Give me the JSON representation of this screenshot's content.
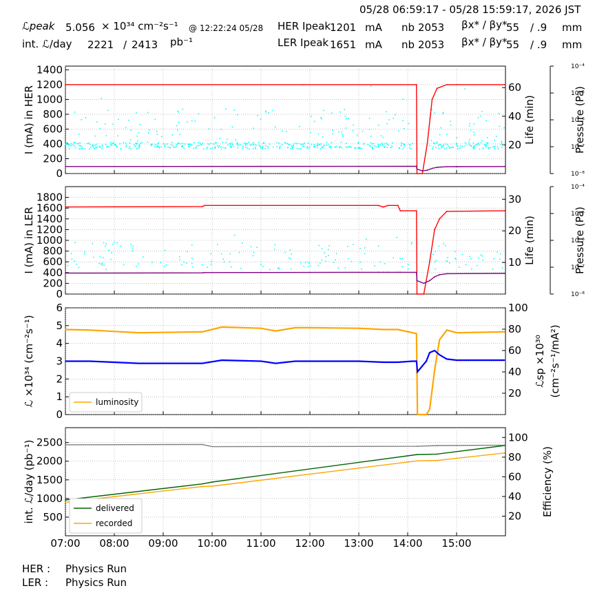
{
  "header": {
    "time_range": "05/28 06:59:17 - 05/28 15:59:17, 2026 JST",
    "lpeak_label": "ℒpeak",
    "lpeak_value": "5.056",
    "lpeak_unit": "× 10³⁴ cm⁻²s⁻¹",
    "lpeak_time": "@ 12:22:24 05/28",
    "intl_label": "int. ℒ/day",
    "intl_value1": "2221",
    "intl_sep": "/",
    "intl_value2": "2413",
    "intl_unit": "pb⁻¹",
    "her": {
      "label": "HER Ipeak",
      "current": "1201",
      "unit": "mA",
      "nb_label": "nb",
      "nb": "2053",
      "beta_label": "βx* / βy*",
      "beta_x": "55",
      "beta_y": "/ .9",
      "beta_unit": "mm"
    },
    "ler": {
      "label": "LER Ipeak",
      "current": "1651",
      "unit": "mA",
      "nb_label": "nb",
      "nb": "2053",
      "beta_label": "βx* / βy*",
      "beta_x": "55",
      "beta_y": "/ .9",
      "beta_unit": "mm"
    }
  },
  "footer": {
    "her_label": "HER :",
    "her_status": "Physics Run",
    "ler_label": "LER :",
    "ler_status": "Physics Run"
  },
  "colors": {
    "red": "#ff0000",
    "cyan": "#00ffff",
    "purple": "#800080",
    "orange": "#ffa500",
    "blue": "#0000ff",
    "green": "#006400",
    "gray": "#808080"
  },
  "chart_data": [
    {
      "type": "line",
      "title": "",
      "ylabel": "I (mA) in HER",
      "ylabel_right": "Life (min)",
      "ylabel_right2": "Pressure (Pa)",
      "ylim": [
        0,
        1450
      ],
      "yticks": [
        0,
        200,
        400,
        600,
        800,
        1000,
        1200,
        1400
      ],
      "y2lim": [
        0,
        75
      ],
      "y2ticks": [
        20,
        40,
        60
      ],
      "y3ticks": [
        "10⁻⁸",
        "10⁻⁷",
        "10⁻⁶",
        "10⁻⁵",
        "10⁻⁴"
      ],
      "x": [
        7.0,
        14.18,
        14.19,
        14.3,
        14.4,
        14.5,
        14.6,
        14.8,
        15.0,
        15.98
      ],
      "series": [
        {
          "name": "HER current",
          "color": "#ff0000",
          "axis": "left",
          "values": [
            1200,
            1200,
            0,
            0,
            400,
            1000,
            1150,
            1200,
            1200,
            1200
          ]
        },
        {
          "name": "HER lifetime",
          "color": "#800080",
          "axis": "left",
          "values": [
            95,
            98,
            60,
            35,
            45,
            70,
            85,
            92,
            93,
            95
          ]
        }
      ],
      "scatter": {
        "color": "#00ffff",
        "band": [
          330,
          420
        ],
        "outliers_max": 1330
      }
    },
    {
      "type": "line",
      "title": "",
      "ylabel": "I (mA) in LER",
      "ylabel_right": "Life (min)",
      "ylabel_right2": "Pressure (Pa)",
      "ylim": [
        0,
        2000
      ],
      "yticks": [
        0,
        200,
        400,
        600,
        800,
        1000,
        1200,
        1400,
        1600,
        1800
      ],
      "y2lim": [
        0,
        34
      ],
      "y2ticks": [
        10,
        20,
        30
      ],
      "y3ticks": [
        "10⁻⁸",
        "10⁻⁷",
        "10⁻⁶",
        "10⁻⁵",
        "10⁻⁴"
      ],
      "x": [
        7.0,
        9.8,
        9.85,
        13.4,
        13.5,
        13.6,
        13.8,
        13.85,
        14.18,
        14.19,
        14.33,
        14.45,
        14.55,
        14.65,
        14.8,
        15.98
      ],
      "series": [
        {
          "name": "LER current",
          "color": "#ff0000",
          "axis": "left",
          "values": [
            1620,
            1630,
            1650,
            1650,
            1620,
            1650,
            1650,
            1550,
            1550,
            0,
            0,
            600,
            1200,
            1400,
            1540,
            1550
          ]
        },
        {
          "name": "LER lifetime",
          "color": "#800080",
          "axis": "left",
          "values": [
            390,
            395,
            400,
            405,
            405,
            405,
            405,
            405,
            405,
            250,
            200,
            250,
            320,
            360,
            380,
            385
          ]
        }
      ],
      "scatter": {
        "color": "#00ffff",
        "band": [
          450,
          800
        ],
        "outliers_max": 1130
      }
    },
    {
      "type": "line",
      "title": "",
      "ylabel": "ℒ ×10³⁴ (cm⁻²s⁻¹)",
      "ylabel_right": "ℒsp ×10³⁰ (cm⁻²s⁻¹/mA²)",
      "ylim": [
        0,
        6
      ],
      "yticks": [
        0,
        1,
        2,
        3,
        4,
        5,
        6
      ],
      "y2lim": [
        0,
        100
      ],
      "y2ticks": [
        20,
        40,
        60,
        80,
        100
      ],
      "legend": [
        "luminosity"
      ],
      "legend_position": "lower-left",
      "x": [
        7.0,
        7.5,
        8.5,
        9.8,
        10.2,
        11.0,
        11.3,
        11.7,
        12.0,
        13.0,
        13.5,
        13.8,
        14.1,
        14.18,
        14.2,
        14.38,
        14.45,
        14.55,
        14.65,
        14.8,
        15.0,
        15.98
      ],
      "series": [
        {
          "name": "luminosity",
          "color": "#ffa500",
          "axis": "left",
          "values": [
            4.78,
            4.75,
            4.6,
            4.65,
            4.92,
            4.85,
            4.7,
            4.88,
            4.88,
            4.85,
            4.78,
            4.78,
            4.6,
            4.55,
            0,
            0,
            0.3,
            2.5,
            4.2,
            4.75,
            4.6,
            4.65
          ]
        },
        {
          "name": "specific luminosity",
          "color": "#0000ff",
          "axis": "right",
          "values": [
            50,
            50,
            48,
            48,
            51,
            50,
            48,
            50,
            50,
            50,
            49,
            49,
            50,
            50,
            40,
            50,
            58,
            60,
            56,
            52,
            51,
            51
          ]
        }
      ]
    },
    {
      "type": "line",
      "title": "",
      "ylabel": "int. ℒ/day (pb⁻¹)",
      "ylabel_right": "Efficiency (%)",
      "xlabel": "",
      "ylim": [
        0,
        2900
      ],
      "yticks": [
        500,
        1000,
        1500,
        2000,
        2500
      ],
      "y2lim": [
        0,
        110
      ],
      "y2ticks": [
        20,
        40,
        60,
        80,
        100
      ],
      "xlim": [
        7.0,
        16.0
      ],
      "xticks": [
        "07:00",
        "08:00",
        "09:00",
        "10:00",
        "11:00",
        "12:00",
        "13:00",
        "14:00",
        "15:00"
      ],
      "legend": [
        "delivered",
        "recorded"
      ],
      "legend_position": "lower-left",
      "x": [
        7.0,
        9.8,
        10.0,
        14.2,
        14.6,
        15.98
      ],
      "series": [
        {
          "name": "delivered",
          "color": "#006400",
          "axis": "left",
          "values": [
            960,
            1390,
            1440,
            2180,
            2190,
            2420
          ]
        },
        {
          "name": "recorded",
          "color": "#ffa500",
          "axis": "left",
          "values": [
            900,
            1320,
            1330,
            2010,
            2020,
            2220
          ]
        },
        {
          "name": "efficiency",
          "color": "#808080",
          "axis": "left",
          "values": [
            2440,
            2450,
            2390,
            2400,
            2420,
            2430
          ]
        }
      ]
    }
  ]
}
